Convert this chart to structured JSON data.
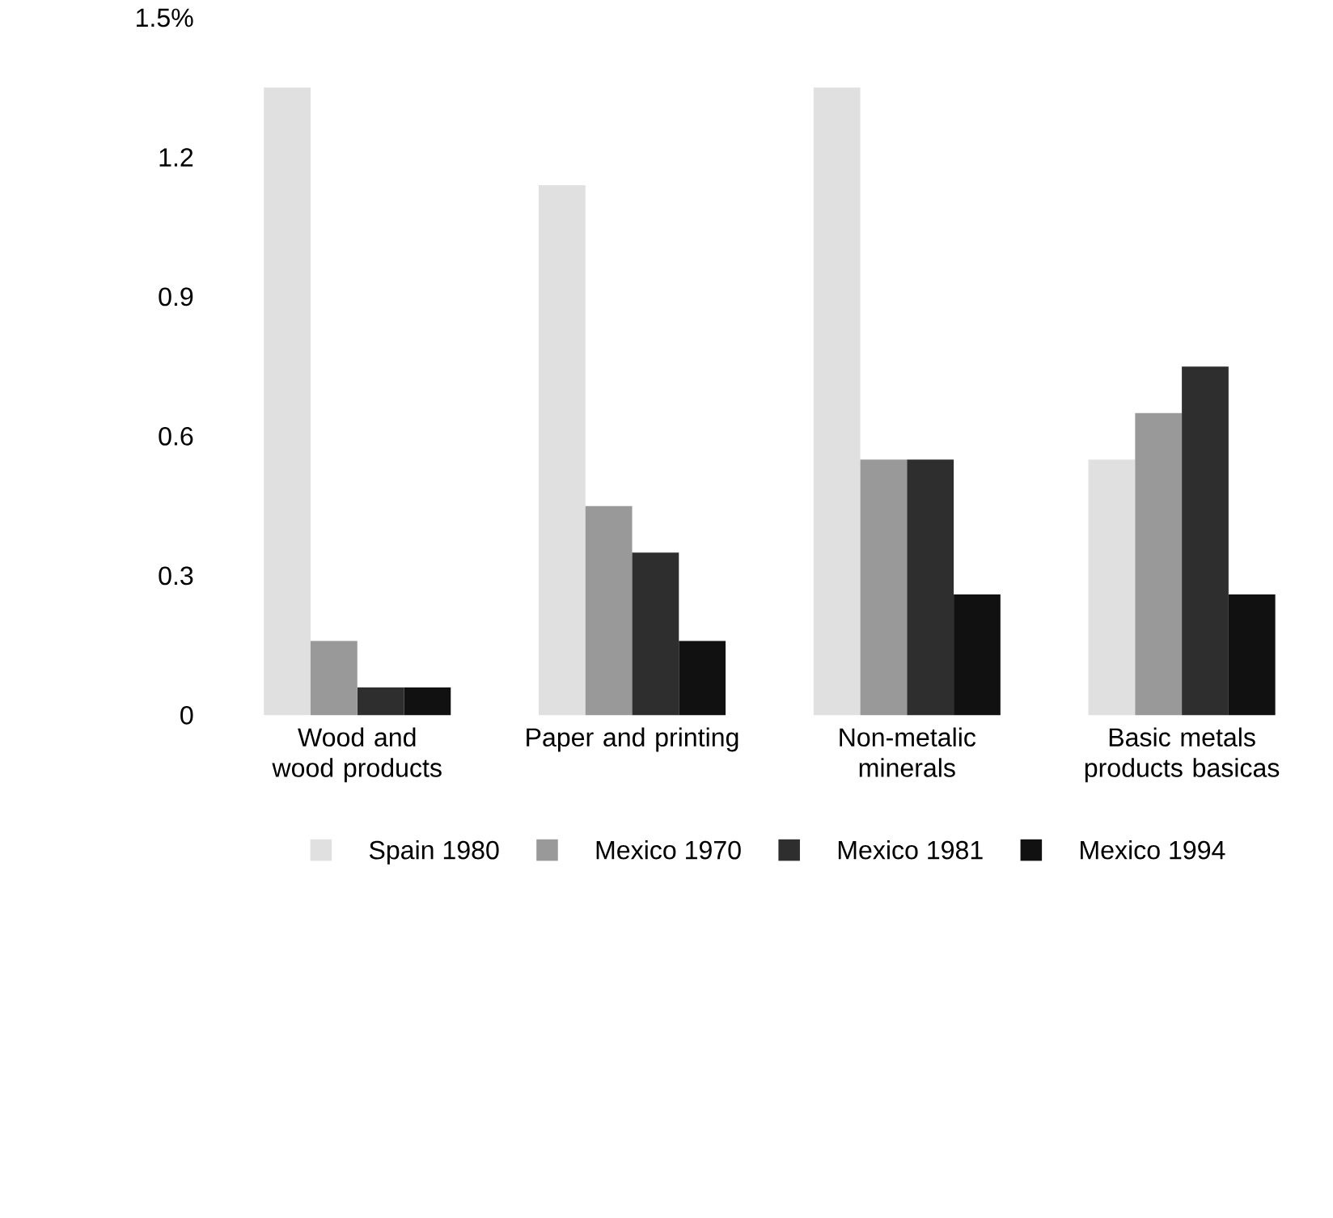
{
  "chart_data": {
    "type": "bar",
    "categories": [
      "Wood and wood products",
      "Paper and printing",
      "Non-metalic minerals",
      "Basic metals products basicas"
    ],
    "series": [
      {
        "name": "Spain 1980",
        "color": "#e0e0e0",
        "values": [
          1.35,
          1.14,
          1.35,
          0.55
        ]
      },
      {
        "name": "Mexico 1970",
        "color": "#999999",
        "values": [
          0.16,
          0.45,
          0.55,
          0.65
        ]
      },
      {
        "name": "Mexico 1981",
        "color": "#2e2e2e",
        "values": [
          0.06,
          0.35,
          0.55,
          0.75
        ]
      },
      {
        "name": "Mexico 1994",
        "color": "#111111",
        "values": [
          0.06,
          0.16,
          0.26,
          0.26
        ]
      }
    ],
    "ylim": [
      0,
      1.5
    ],
    "yticks": [
      0,
      0.3,
      0.6,
      0.9,
      1.2,
      {
        "value": 1.5,
        "label": "1.5%"
      }
    ],
    "grid": false,
    "legend": "bottom"
  }
}
